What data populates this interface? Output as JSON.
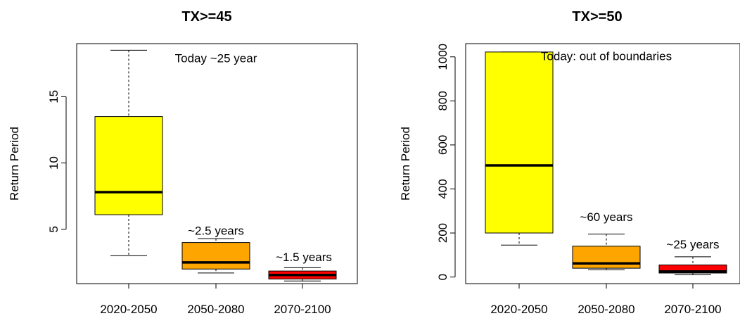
{
  "chart_data": [
    {
      "type": "boxplot",
      "title": "TX>=45",
      "xlabel": "",
      "ylabel": "Return Period",
      "categories": [
        "2020-2050",
        "2050-2080",
        "2070-2100"
      ],
      "ylim": [
        0.9,
        19.0
      ],
      "yticks": [
        5,
        10,
        15
      ],
      "boxes": [
        {
          "category": "2020-2050",
          "min": 3.0,
          "q1": 6.1,
          "median": 7.8,
          "q3": 13.5,
          "max": 18.5,
          "color": "#ffff00"
        },
        {
          "category": "2050-2080",
          "min": 1.7,
          "q1": 2.0,
          "median": 2.5,
          "q3": 4.0,
          "max": 4.3,
          "color": "#ffa500"
        },
        {
          "category": "2070-2100",
          "min": 1.1,
          "q1": 1.25,
          "median": 1.55,
          "q3": 1.85,
          "max": 2.1,
          "color": "#ff0000"
        }
      ],
      "annotations": [
        {
          "text": "Today ~25 year",
          "x": "2050-2080",
          "y": 17.6
        },
        {
          "text": "~2.5 years",
          "x": "2050-2080",
          "y": 4.6
        },
        {
          "text": "~1.5 years",
          "x": "2070-2100",
          "y": 2.6
        }
      ]
    },
    {
      "type": "boxplot",
      "title": "TX>=50",
      "xlabel": "",
      "ylabel": "Return Period",
      "categories": [
        "2020-2050",
        "2050-2080",
        "2070-2100"
      ],
      "ylim": [
        -30,
        1060
      ],
      "yticks": [
        0,
        200,
        400,
        600,
        800,
        1000
      ],
      "boxes": [
        {
          "category": "2020-2050",
          "min": 145,
          "q1": 200,
          "median": 507,
          "q3": 1022,
          "max": 1022,
          "color": "#ffff00"
        },
        {
          "category": "2050-2080",
          "min": 33,
          "q1": 40,
          "median": 62,
          "q3": 140,
          "max": 195,
          "color": "#ffa500"
        },
        {
          "category": "2070-2100",
          "min": 10,
          "q1": 18,
          "median": 25,
          "q3": 55,
          "max": 92,
          "color": "#ff0000"
        }
      ],
      "annotations": [
        {
          "text": "Today: out of boundaries",
          "x": "2050-2080",
          "y": 985
        },
        {
          "text": "~60 years",
          "x": "2050-2080",
          "y": 255
        },
        {
          "text": "~25 years",
          "x": "2070-2100",
          "y": 130
        }
      ]
    }
  ]
}
